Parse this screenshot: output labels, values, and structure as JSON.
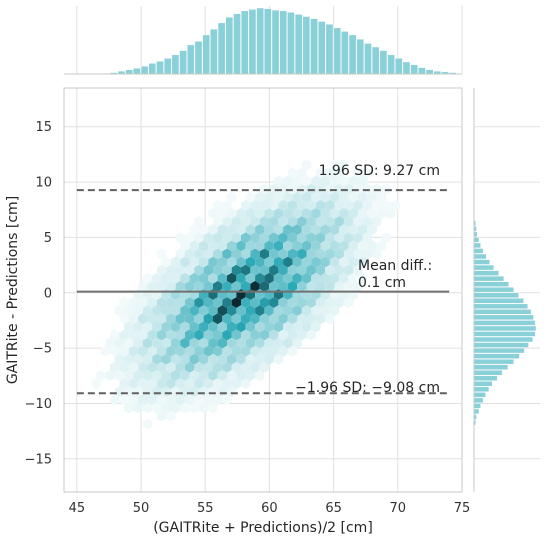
{
  "chart_data": {
    "type": "hexbin-jointplot",
    "title": "",
    "xlabel": "(GAITRite + Predictions)/2 [cm]",
    "ylabel": "GAITRite - Predictions [cm]",
    "xlim": [
      44,
      75
    ],
    "ylim": [
      -18,
      18.5
    ],
    "xticks": [
      45,
      50,
      55,
      60,
      65,
      70,
      75
    ],
    "yticks": [
      -15,
      -10,
      -5,
      0,
      5,
      10,
      15
    ],
    "grid": true,
    "color": "#2aa8b6",
    "reference_lines": [
      {
        "name": "upper_loa",
        "y": 9.27,
        "style": "dashed",
        "color": "#606060",
        "x_range": [
          45,
          74
        ],
        "label": "1.96 SD: 9.27 cm"
      },
      {
        "name": "mean",
        "y": 0.1,
        "style": "solid",
        "color": "#707070",
        "x_range": [
          45,
          74
        ],
        "label_line1": "Mean diff.:",
        "label_line2": "0.1 cm"
      },
      {
        "name": "lower_loa",
        "y": -9.08,
        "style": "dashed",
        "color": "#606060",
        "x_range": [
          45,
          74
        ],
        "label": "−1.96 SD: −9.08 cm"
      }
    ],
    "distribution": {
      "x_mean": 58.2,
      "x_sd": 4.6,
      "y_mean": 0.1,
      "y_sd": 4.7,
      "correlation": 0.62
    },
    "x_marginal": {
      "bin_start": 47,
      "bin_width": 0.6,
      "counts": [
        1,
        2,
        4,
        6,
        8,
        11,
        15,
        18,
        22,
        27,
        33,
        41,
        46,
        55,
        63,
        72,
        80,
        85,
        89,
        91,
        93,
        92,
        90,
        89,
        87,
        84,
        81,
        78,
        74,
        70,
        65,
        60,
        55,
        49,
        43,
        38,
        33,
        27,
        22,
        17,
        13,
        9,
        6,
        4,
        3,
        2
      ]
    },
    "y_marginal": {
      "bin_start": -12,
      "bin_width": 0.5,
      "counts": [
        2,
        3,
        6,
        8,
        11,
        14,
        18,
        22,
        28,
        34,
        41,
        48,
        55,
        61,
        66,
        71,
        74,
        75,
        74,
        72,
        69,
        65,
        60,
        54,
        48,
        42,
        36,
        30,
        24,
        19,
        15,
        11,
        8,
        6,
        4,
        3,
        2
      ]
    }
  }
}
